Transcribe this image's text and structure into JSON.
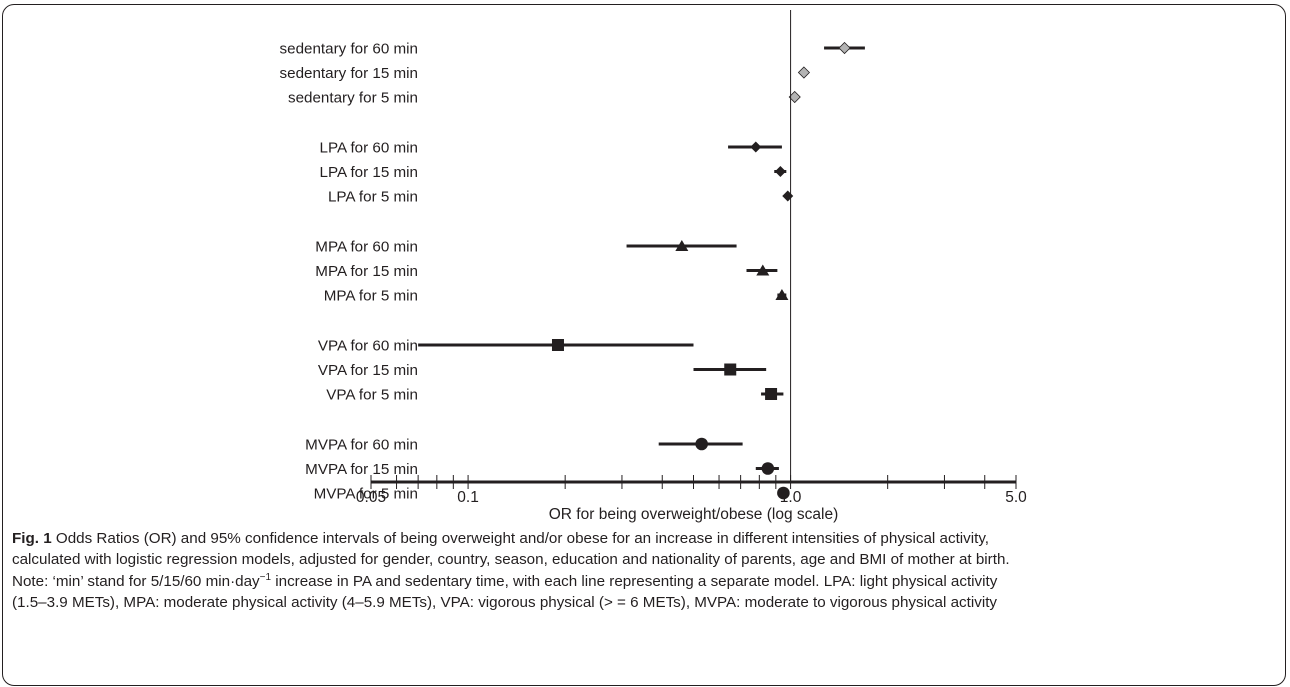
{
  "chart_data": {
    "type": "forest",
    "xlabel": "OR for being overweight/obese (log scale)",
    "x_scale": "log",
    "xlim": [
      0.05,
      5.0
    ],
    "x_tick_labels": [
      {
        "value": 0.05,
        "label": "0.05"
      },
      {
        "value": 0.1,
        "label": "0.1"
      },
      {
        "value": 1.0,
        "label": "1.0"
      },
      {
        "value": 5.0,
        "label": "5.0"
      }
    ],
    "reference_line": 1.0,
    "groups": [
      {
        "marker": "diamond",
        "color": "#b3b3b3",
        "rows": [
          {
            "label": "sedentary for 60 min",
            "or": 1.47,
            "lo": 1.27,
            "hi": 1.7
          },
          {
            "label": "sedentary for 15 min",
            "or": 1.1,
            "lo": 1.08,
            "hi": 1.13
          },
          {
            "label": "sedentary for 5 min",
            "or": 1.03,
            "lo": 1.02,
            "hi": 1.05
          }
        ]
      },
      {
        "marker": "diamond",
        "color": "#231f20",
        "rows": [
          {
            "label": "LPA for 60 min",
            "or": 0.78,
            "lo": 0.64,
            "hi": 0.94
          },
          {
            "label": "LPA for 15 min",
            "or": 0.93,
            "lo": 0.89,
            "hi": 0.97
          },
          {
            "label": "LPA for 5 min",
            "or": 0.98,
            "lo": 0.96,
            "hi": 0.99
          }
        ]
      },
      {
        "marker": "triangle",
        "color": "#231f20",
        "rows": [
          {
            "label": "MPA for 60 min",
            "or": 0.46,
            "lo": 0.31,
            "hi": 0.68
          },
          {
            "label": "MPA for 15 min",
            "or": 0.82,
            "lo": 0.73,
            "hi": 0.91
          },
          {
            "label": "MPA for 5 min",
            "or": 0.94,
            "lo": 0.91,
            "hi": 0.97
          }
        ]
      },
      {
        "marker": "square",
        "color": "#231f20",
        "rows": [
          {
            "label": "VPA for 60 min",
            "or": 0.19,
            "lo": 0.07,
            "hi": 0.5
          },
          {
            "label": "VPA for 15 min",
            "or": 0.65,
            "lo": 0.5,
            "hi": 0.84
          },
          {
            "label": "VPA for 5 min",
            "or": 0.87,
            "lo": 0.81,
            "hi": 0.95
          }
        ]
      },
      {
        "marker": "circle",
        "color": "#231f20",
        "rows": [
          {
            "label": "MVPA for 60 min",
            "or": 0.53,
            "lo": 0.39,
            "hi": 0.71
          },
          {
            "label": "MVPA for 15 min",
            "or": 0.85,
            "lo": 0.78,
            "hi": 0.92
          },
          {
            "label": "MVPA for 5 min",
            "or": 0.95,
            "lo": 0.93,
            "hi": 0.97
          }
        ]
      }
    ]
  },
  "caption": {
    "fig_label": "Fig. 1",
    "line1": "Odds Ratios (OR) and 95% confidence intervals of being overweight and/or obese for an increase in different intensities of physical activity,",
    "line2": "calculated with logistic regression models, adjusted for gender, country, season, education and nationality of parents, age and BMI of mother at birth.",
    "line3_a": "Note: ‘min’ stand for 5/15/60 min·day",
    "line3_sup": "−1",
    "line3_b": " increase in PA and sedentary time, with each line representing a separate model. LPA: light physical activity",
    "line4": "(1.5–3.9 METs), MPA: moderate physical activity (4–5.9 METs), VPA: vigorous physical (> = 6 METs), MVPA: moderate to vigorous physical activity"
  }
}
